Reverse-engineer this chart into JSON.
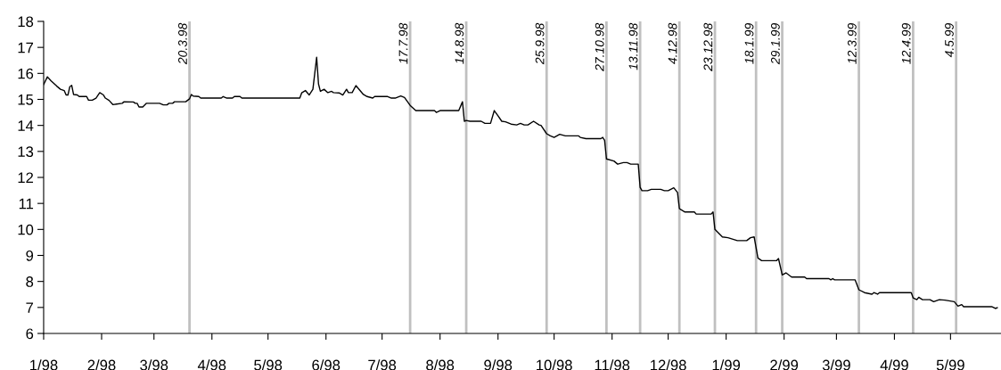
{
  "chart_data": {
    "type": "line",
    "color": "#000000",
    "x": [
      "1998-01-01",
      "1998-01-03",
      "1998-01-05",
      "1998-01-08",
      "1998-01-10",
      "1998-01-12",
      "1998-01-13",
      "1998-01-14",
      "1998-01-15",
      "1998-01-16",
      "1998-01-17",
      "1998-01-19",
      "1998-01-20",
      "1998-01-24",
      "1998-01-25",
      "1998-01-27",
      "1998-01-29",
      "1998-01-31",
      "1998-02-02",
      "1998-02-03",
      "1998-02-05",
      "1998-02-07",
      "1998-02-09",
      "1998-02-12",
      "1998-02-13",
      "1998-02-18",
      "1998-02-19",
      "1998-02-20",
      "1998-02-21",
      "1998-02-23",
      "1998-02-25",
      "1998-03-04",
      "1998-03-06",
      "1998-03-08",
      "1998-03-09",
      "1998-03-11",
      "1998-03-12",
      "1998-03-18",
      "1998-03-20",
      "1998-03-21",
      "1998-03-22",
      "1998-03-25",
      "1998-03-26",
      "1998-04-06",
      "1998-04-07",
      "1998-04-09",
      "1998-04-12",
      "1998-04-13",
      "1998-04-16",
      "1998-04-17",
      "1998-05-18",
      "1998-05-19",
      "1998-05-21",
      "1998-05-23",
      "1998-05-25",
      "1998-05-27",
      "1998-05-28",
      "1998-05-29",
      "1998-05-31",
      "1998-06-02",
      "1998-06-04",
      "1998-06-05",
      "1998-06-08",
      "1998-06-10",
      "1998-06-12",
      "1998-06-13",
      "1998-06-15",
      "1998-06-17",
      "1998-06-21",
      "1998-06-23",
      "1998-06-26",
      "1998-06-27",
      "1998-07-04",
      "1998-07-06",
      "1998-07-08",
      "1998-07-11",
      "1998-07-13",
      "1998-07-16",
      "1998-07-19",
      "1998-07-29",
      "1998-07-30",
      "1998-08-01",
      "1998-08-11",
      "1998-08-13",
      "1998-08-14",
      "1998-08-15",
      "1998-08-17",
      "1998-08-23",
      "1998-08-25",
      "1998-08-28",
      "1998-08-30",
      "1998-09-01",
      "1998-09-03",
      "1998-09-05",
      "1998-09-08",
      "1998-09-11",
      "1998-09-13",
      "1998-09-15",
      "1998-09-17",
      "1998-09-20",
      "1998-09-23",
      "1998-09-24",
      "1998-09-27",
      "1998-09-29",
      "1998-10-01",
      "1998-10-04",
      "1998-10-07",
      "1998-10-14",
      "1998-10-15",
      "1998-10-18",
      "1998-10-26",
      "1998-10-27",
      "1998-10-28",
      "1998-10-29",
      "1998-11-02",
      "1998-11-04",
      "1998-11-07",
      "1998-11-09",
      "1998-11-11",
      "1998-11-15",
      "1998-11-16",
      "1998-11-17",
      "1998-11-20",
      "1998-11-22",
      "1998-11-27",
      "1998-11-29",
      "1998-12-01",
      "1998-12-04",
      "1998-12-06",
      "1998-12-07",
      "1998-12-10",
      "1998-12-15",
      "1998-12-16",
      "1998-12-24",
      "1998-12-25",
      "1998-12-26",
      "1998-12-30",
      "1999-01-02",
      "1999-01-07",
      "1999-01-12",
      "1999-01-14",
      "1999-01-16",
      "1999-01-18",
      "1999-01-20",
      "1999-01-28",
      "1999-01-29",
      "1999-01-31",
      "1999-02-02",
      "1999-02-05",
      "1999-02-12",
      "1999-02-13",
      "1999-02-25",
      "1999-02-26",
      "1999-02-27",
      "1999-02-28",
      "1999-03-11",
      "1999-03-13",
      "1999-03-16",
      "1999-03-20",
      "1999-03-21",
      "1999-03-23",
      "1999-03-24",
      "1999-04-10",
      "1999-04-11",
      "1999-04-13",
      "1999-04-14",
      "1999-04-16",
      "1999-04-20",
      "1999-04-22",
      "1999-04-25",
      "1999-04-28",
      "1999-05-03",
      "1999-05-05",
      "1999-05-07",
      "1999-05-08",
      "1999-05-23",
      "1999-05-25",
      "1999-05-26"
    ],
    "values": [
      15.57,
      15.87,
      15.71,
      15.51,
      15.39,
      15.34,
      15.17,
      15.17,
      15.49,
      15.54,
      15.19,
      15.17,
      15.11,
      15.11,
      14.97,
      14.97,
      15.05,
      15.26,
      15.17,
      15.05,
      14.96,
      14.8,
      14.82,
      14.85,
      14.91,
      14.9,
      14.85,
      14.85,
      14.71,
      14.71,
      14.85,
      14.85,
      14.79,
      14.79,
      14.85,
      14.85,
      14.91,
      14.91,
      15.02,
      15.19,
      15.13,
      15.11,
      15.05,
      15.05,
      15.11,
      15.05,
      15.05,
      15.11,
      15.11,
      15.05,
      15.05,
      15.25,
      15.34,
      15.17,
      15.39,
      16.62,
      15.59,
      15.31,
      15.39,
      15.26,
      15.31,
      15.26,
      15.25,
      15.17,
      15.39,
      15.26,
      15.26,
      15.53,
      15.19,
      15.11,
      15.05,
      15.11,
      15.11,
      15.05,
      15.05,
      15.13,
      15.07,
      14.77,
      14.57,
      14.57,
      14.5,
      14.57,
      14.57,
      14.91,
      14.16,
      14.19,
      14.16,
      14.16,
      14.08,
      14.08,
      14.57,
      14.37,
      14.16,
      14.14,
      14.05,
      14.02,
      14.08,
      14.02,
      14.02,
      14.16,
      14.02,
      14.0,
      13.68,
      13.6,
      13.54,
      13.66,
      13.6,
      13.6,
      13.54,
      13.49,
      13.49,
      13.54,
      13.43,
      12.71,
      12.63,
      12.51,
      12.57,
      12.57,
      12.51,
      12.51,
      11.62,
      11.49,
      11.49,
      11.54,
      11.54,
      11.49,
      11.49,
      11.6,
      11.42,
      10.8,
      10.67,
      10.67,
      10.59,
      10.59,
      10.67,
      10.0,
      9.71,
      9.68,
      9.57,
      9.57,
      9.68,
      9.71,
      8.9,
      8.8,
      8.8,
      8.88,
      8.25,
      8.33,
      8.17,
      8.17,
      8.11,
      8.11,
      8.06,
      8.11,
      8.06,
      8.06,
      7.68,
      7.57,
      7.51,
      7.57,
      7.51,
      7.57,
      7.57,
      7.37,
      7.3,
      7.39,
      7.3,
      7.3,
      7.22,
      7.3,
      7.28,
      7.22,
      7.05,
      7.11,
      7.03,
      7.03,
      6.96,
      6.99
    ],
    "xlim": [
      "1998-01-01",
      "1999-05-28"
    ],
    "xticks": [
      {
        "value": "1998-01",
        "label": "1/98"
      },
      {
        "value": "1998-02",
        "label": "2/98"
      },
      {
        "value": "1998-03",
        "label": "3/98"
      },
      {
        "value": "1998-04",
        "label": "4/98"
      },
      {
        "value": "1998-05",
        "label": "5/98"
      },
      {
        "value": "1998-06",
        "label": "6/98"
      },
      {
        "value": "1998-07",
        "label": "7/98"
      },
      {
        "value": "1998-08",
        "label": "8/98"
      },
      {
        "value": "1998-09",
        "label": "9/98"
      },
      {
        "value": "1998-10",
        "label": "10/98"
      },
      {
        "value": "1998-11",
        "label": "11/98"
      },
      {
        "value": "1998-12",
        "label": "12/98"
      },
      {
        "value": "1999-01",
        "label": "1/99"
      },
      {
        "value": "1999-02",
        "label": "2/99"
      },
      {
        "value": "1999-03",
        "label": "3/99"
      },
      {
        "value": "1999-04",
        "label": "4/99"
      },
      {
        "value": "1999-05",
        "label": "5/99"
      }
    ],
    "ylim": [
      6,
      18
    ],
    "yticks": [
      6,
      7,
      8,
      9,
      10,
      11,
      12,
      13,
      14,
      15,
      16,
      17,
      18
    ],
    "grid": false,
    "marker": "none",
    "line_style": "solid",
    "ref_lines": [
      {
        "axis": "x",
        "value": "1998-03-20",
        "label": "20.3.98",
        "color": "#c0c0c0"
      },
      {
        "axis": "x",
        "value": "1998-07-16",
        "label": "17.7.98",
        "color": "#c0c0c0"
      },
      {
        "axis": "x",
        "value": "1998-08-15",
        "label": "14.8.98",
        "color": "#c0c0c0"
      },
      {
        "axis": "x",
        "value": "1998-09-27",
        "label": "25.9.98",
        "color": "#c0c0c0"
      },
      {
        "axis": "x",
        "value": "1998-10-29",
        "label": "27.10.98",
        "color": "#c0c0c0"
      },
      {
        "axis": "x",
        "value": "1998-11-16",
        "label": "13.11.98",
        "color": "#c0c0c0"
      },
      {
        "axis": "x",
        "value": "1998-12-07",
        "label": "4.12.98",
        "color": "#c0c0c0"
      },
      {
        "axis": "x",
        "value": "1998-12-26",
        "label": "23.12.98",
        "color": "#c0c0c0"
      },
      {
        "axis": "x",
        "value": "1999-01-17",
        "label": "18.1.99",
        "color": "#c0c0c0"
      },
      {
        "axis": "x",
        "value": "1999-01-31",
        "label": "29.1.99",
        "color": "#c0c0c0"
      },
      {
        "axis": "x",
        "value": "1999-03-13",
        "label": "12.3.99",
        "color": "#c0c0c0"
      },
      {
        "axis": "x",
        "value": "1999-04-11",
        "label": "12.4.99",
        "color": "#c0c0c0"
      },
      {
        "axis": "x",
        "value": "1999-05-04",
        "label": "4.5.99",
        "color": "#c0c0c0"
      }
    ]
  }
}
